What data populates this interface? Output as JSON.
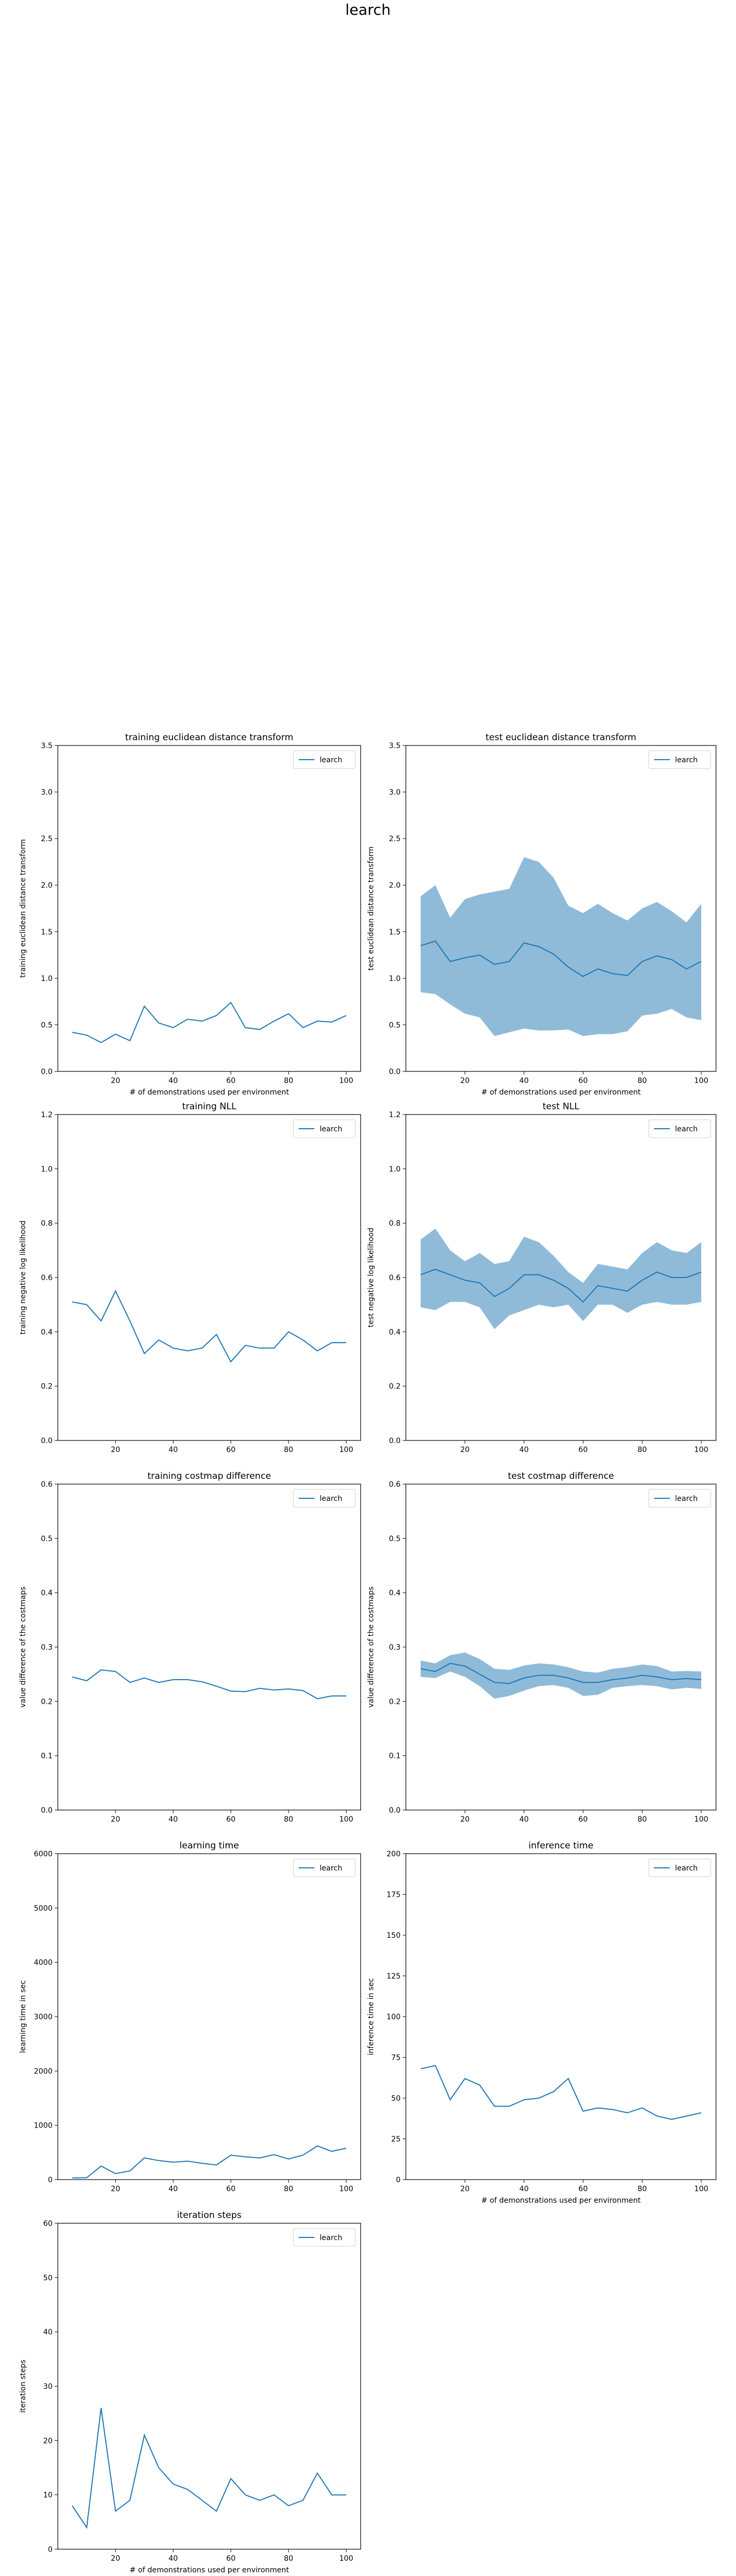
{
  "figure": {
    "suptitle": "learch"
  },
  "chart_data": [
    {
      "type": "line",
      "title": "training euclidean distance transform",
      "xlabel": "# of demonstrations used per environment",
      "ylabel": "training euclidean distance transform",
      "xlim": [
        0,
        105
      ],
      "ylim": [
        0,
        3.5
      ],
      "xticks": [
        "20",
        "40",
        "60",
        "80",
        "100"
      ],
      "yticks": [
        "0.0",
        "0.5",
        "1.0",
        "1.5",
        "2.0",
        "2.5",
        "3.0",
        "3.5"
      ],
      "legend": "learch",
      "legend_position": "top-right",
      "x": [
        5,
        10,
        15,
        20,
        25,
        30,
        35,
        40,
        45,
        50,
        55,
        60,
        65,
        70,
        75,
        80,
        85,
        90,
        95,
        100
      ],
      "series": [
        {
          "name": "learch",
          "color": "#1f77b4",
          "values": [
            0.42,
            0.39,
            0.31,
            0.4,
            0.33,
            0.7,
            0.52,
            0.47,
            0.56,
            0.54,
            0.6,
            0.74,
            0.47,
            0.45,
            0.54,
            0.62,
            0.47,
            0.54,
            0.53,
            0.6
          ]
        }
      ]
    },
    {
      "type": "line",
      "title": "test euclidean distance transform",
      "xlabel": "# of demonstrations used per environment",
      "ylabel": "test euclidean distance transform",
      "xlim": [
        0,
        105
      ],
      "ylim": [
        0,
        3.5
      ],
      "xticks": [
        "20",
        "40",
        "60",
        "80",
        "100"
      ],
      "yticks": [
        "0.0",
        "0.5",
        "1.0",
        "1.5",
        "2.0",
        "2.5",
        "3.0",
        "3.5"
      ],
      "legend": "learch",
      "legend_position": "top-right",
      "x": [
        5,
        10,
        15,
        20,
        25,
        30,
        35,
        40,
        45,
        50,
        55,
        60,
        65,
        70,
        75,
        80,
        85,
        90,
        95,
        100
      ],
      "series": [
        {
          "name": "learch",
          "color": "#1f77b4",
          "values": [
            1.35,
            1.4,
            1.18,
            1.22,
            1.25,
            1.15,
            1.18,
            1.38,
            1.34,
            1.26,
            1.12,
            1.02,
            1.1,
            1.05,
            1.03,
            1.18,
            1.24,
            1.2,
            1.1,
            1.18
          ],
          "band_upper": [
            1.88,
            2.0,
            1.65,
            1.85,
            1.9,
            1.93,
            1.96,
            2.3,
            2.25,
            2.08,
            1.78,
            1.7,
            1.8,
            1.7,
            1.62,
            1.75,
            1.82,
            1.72,
            1.6,
            1.8
          ],
          "band_lower": [
            0.85,
            0.83,
            0.72,
            0.62,
            0.58,
            0.38,
            0.42,
            0.46,
            0.44,
            0.44,
            0.45,
            0.38,
            0.4,
            0.4,
            0.43,
            0.6,
            0.62,
            0.67,
            0.58,
            0.55
          ]
        }
      ]
    },
    {
      "type": "line",
      "title": "training NLL",
      "xlabel": "",
      "ylabel": "training negative log likelihood",
      "xlim": [
        0,
        105
      ],
      "ylim": [
        0,
        1.2
      ],
      "xticks": [
        "20",
        "40",
        "60",
        "80",
        "100"
      ],
      "yticks": [
        "0.0",
        "0.2",
        "0.4",
        "0.6",
        "0.8",
        "1.0",
        "1.2"
      ],
      "legend": "learch",
      "legend_position": "top-right",
      "x": [
        5,
        10,
        15,
        20,
        25,
        30,
        35,
        40,
        45,
        50,
        55,
        60,
        65,
        70,
        75,
        80,
        85,
        90,
        95,
        100
      ],
      "series": [
        {
          "name": "learch",
          "color": "#1f77b4",
          "values": [
            0.51,
            0.5,
            0.44,
            0.55,
            0.44,
            0.32,
            0.37,
            0.34,
            0.33,
            0.34,
            0.39,
            0.29,
            0.35,
            0.34,
            0.34,
            0.4,
            0.37,
            0.33,
            0.36,
            0.36
          ]
        }
      ]
    },
    {
      "type": "line",
      "title": "test NLL",
      "xlabel": "",
      "ylabel": "test negative log likelihood",
      "xlim": [
        0,
        105
      ],
      "ylim": [
        0,
        1.2
      ],
      "xticks": [
        "20",
        "40",
        "60",
        "80",
        "100"
      ],
      "yticks": [
        "0.0",
        "0.2",
        "0.4",
        "0.6",
        "0.8",
        "1.0",
        "1.2"
      ],
      "legend": "learch",
      "legend_position": "top-right",
      "x": [
        5,
        10,
        15,
        20,
        25,
        30,
        35,
        40,
        45,
        50,
        55,
        60,
        65,
        70,
        75,
        80,
        85,
        90,
        95,
        100
      ],
      "series": [
        {
          "name": "learch",
          "color": "#1f77b4",
          "values": [
            0.61,
            0.63,
            0.61,
            0.59,
            0.58,
            0.53,
            0.56,
            0.61,
            0.61,
            0.59,
            0.56,
            0.51,
            0.57,
            0.56,
            0.55,
            0.59,
            0.62,
            0.6,
            0.6,
            0.62
          ],
          "band_upper": [
            0.74,
            0.78,
            0.7,
            0.66,
            0.69,
            0.65,
            0.66,
            0.75,
            0.73,
            0.68,
            0.62,
            0.58,
            0.65,
            0.64,
            0.63,
            0.69,
            0.73,
            0.7,
            0.69,
            0.73
          ],
          "band_lower": [
            0.49,
            0.48,
            0.51,
            0.51,
            0.49,
            0.41,
            0.46,
            0.48,
            0.5,
            0.49,
            0.5,
            0.44,
            0.5,
            0.5,
            0.47,
            0.5,
            0.51,
            0.5,
            0.5,
            0.51
          ]
        }
      ]
    },
    {
      "type": "line",
      "title": "training costmap difference",
      "xlabel": "",
      "ylabel": "value difference of the costmaps",
      "xlim": [
        0,
        105
      ],
      "ylim": [
        0,
        0.6
      ],
      "xticks": [
        "20",
        "40",
        "60",
        "80",
        "100"
      ],
      "yticks": [
        "0.0",
        "0.1",
        "0.2",
        "0.3",
        "0.4",
        "0.5",
        "0.6"
      ],
      "legend": "learch",
      "legend_position": "top-right",
      "x": [
        5,
        10,
        15,
        20,
        25,
        30,
        35,
        40,
        45,
        50,
        55,
        60,
        65,
        70,
        75,
        80,
        85,
        90,
        95,
        100
      ],
      "series": [
        {
          "name": "learch",
          "color": "#1f77b4",
          "values": [
            0.245,
            0.238,
            0.258,
            0.255,
            0.235,
            0.243,
            0.235,
            0.24,
            0.24,
            0.236,
            0.228,
            0.219,
            0.218,
            0.224,
            0.221,
            0.223,
            0.22,
            0.205,
            0.21,
            0.21
          ]
        }
      ]
    },
    {
      "type": "line",
      "title": "test costmap difference",
      "xlabel": "",
      "ylabel": "value difference of the costmaps",
      "xlim": [
        0,
        105
      ],
      "ylim": [
        0,
        0.6
      ],
      "xticks": [
        "20",
        "40",
        "60",
        "80",
        "100"
      ],
      "yticks": [
        "0.0",
        "0.1",
        "0.2",
        "0.3",
        "0.4",
        "0.5",
        "0.6"
      ],
      "legend": "learch",
      "legend_position": "top-right",
      "x": [
        5,
        10,
        15,
        20,
        25,
        30,
        35,
        40,
        45,
        50,
        55,
        60,
        65,
        70,
        75,
        80,
        85,
        90,
        95,
        100
      ],
      "series": [
        {
          "name": "learch",
          "color": "#1f77b4",
          "values": [
            0.26,
            0.255,
            0.27,
            0.265,
            0.25,
            0.235,
            0.233,
            0.243,
            0.248,
            0.248,
            0.243,
            0.235,
            0.235,
            0.24,
            0.243,
            0.248,
            0.245,
            0.24,
            0.242,
            0.24
          ],
          "band_upper": [
            0.275,
            0.27,
            0.285,
            0.29,
            0.278,
            0.26,
            0.258,
            0.266,
            0.27,
            0.268,
            0.263,
            0.255,
            0.253,
            0.26,
            0.263,
            0.268,
            0.265,
            0.255,
            0.256,
            0.255
          ],
          "band_lower": [
            0.245,
            0.243,
            0.255,
            0.245,
            0.228,
            0.205,
            0.21,
            0.22,
            0.228,
            0.23,
            0.225,
            0.21,
            0.212,
            0.225,
            0.228,
            0.23,
            0.228,
            0.222,
            0.225,
            0.223
          ]
        }
      ]
    },
    {
      "type": "line",
      "title": "learning time",
      "xlabel": "",
      "ylabel": "learning time in sec",
      "xlim": [
        0,
        105
      ],
      "ylim": [
        0,
        6000
      ],
      "xticks": [
        "20",
        "40",
        "60",
        "80",
        "100"
      ],
      "yticks": [
        "0",
        "1000",
        "2000",
        "3000",
        "4000",
        "5000",
        "6000"
      ],
      "legend": "learch",
      "legend_position": "top-right",
      "x": [
        5,
        10,
        15,
        20,
        25,
        30,
        35,
        40,
        45,
        50,
        55,
        60,
        65,
        70,
        75,
        80,
        85,
        90,
        95,
        100
      ],
      "series": [
        {
          "name": "learch",
          "color": "#1f77b4",
          "values": [
            30,
            35,
            250,
            110,
            160,
            400,
            350,
            320,
            340,
            300,
            270,
            450,
            420,
            400,
            460,
            380,
            450,
            620,
            520,
            580
          ]
        }
      ]
    },
    {
      "type": "line",
      "title": "inference time",
      "xlabel": "# of demonstrations used per environment",
      "ylabel": "inference time in sec",
      "xlim": [
        0,
        105
      ],
      "ylim": [
        0,
        200
      ],
      "xticks": [
        "20",
        "40",
        "60",
        "80",
        "100"
      ],
      "yticks": [
        "0",
        "25",
        "50",
        "75",
        "100",
        "125",
        "150",
        "175",
        "200"
      ],
      "legend": "learch",
      "legend_position": "top-right",
      "x": [
        5,
        10,
        15,
        20,
        25,
        30,
        35,
        40,
        45,
        50,
        55,
        60,
        65,
        70,
        75,
        80,
        85,
        90,
        95,
        100
      ],
      "series": [
        {
          "name": "learch",
          "color": "#1f77b4",
          "values": [
            68,
            70,
            49,
            62,
            58,
            45,
            45,
            49,
            50,
            54,
            62,
            42,
            44,
            43,
            41,
            44,
            39,
            37,
            39,
            41
          ]
        }
      ]
    },
    {
      "type": "line",
      "title": "iteration steps",
      "xlabel": "# of demonstrations used per environment",
      "ylabel": "iteration steps",
      "xlim": [
        0,
        105
      ],
      "ylim": [
        0,
        60
      ],
      "xticks": [
        "20",
        "40",
        "60",
        "80",
        "100"
      ],
      "yticks": [
        "0",
        "10",
        "20",
        "30",
        "40",
        "50",
        "60"
      ],
      "legend": "learch",
      "legend_position": "top-right",
      "x": [
        5,
        10,
        15,
        20,
        25,
        30,
        35,
        40,
        45,
        50,
        55,
        60,
        65,
        70,
        75,
        80,
        85,
        90,
        95,
        100
      ],
      "series": [
        {
          "name": "learch",
          "color": "#1f77b4",
          "values": [
            8,
            4,
            26,
            7,
            9,
            21,
            15,
            12,
            11,
            9,
            7,
            13,
            10,
            9,
            10,
            8,
            9,
            14,
            10,
            10
          ]
        }
      ]
    }
  ]
}
